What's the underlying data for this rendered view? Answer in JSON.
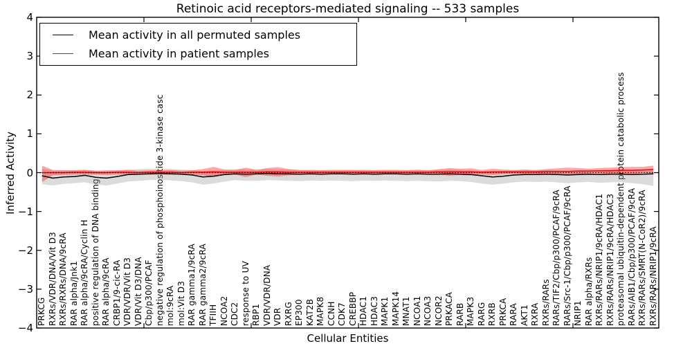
{
  "title": "Retinoic acid receptors-mediated signaling -- 533 samples",
  "chart_data": {
    "type": "line",
    "title": "Retinoic acid receptors-mediated signaling -- 533 samples",
    "xlabel": "Cellular Entities",
    "ylabel": "Inferred Activity",
    "ylim": [
      -4,
      4
    ],
    "yticks": [
      4,
      3,
      2,
      1,
      0,
      -1,
      -2,
      -3,
      -4
    ],
    "ytick_labels": [
      "4",
      "3",
      "2",
      "1",
      "0",
      "−1",
      "−2",
      "−3",
      "−4"
    ],
    "xtick_positions": [
      10,
      20,
      30,
      40,
      50
    ],
    "grid": false,
    "legend_position": "upper left",
    "zero_reference_line": {
      "value": 0,
      "style": "dotted",
      "color": "#000000"
    },
    "categories": [
      "PRKCG",
      "RXRs/VDR/DNA/Vit D3",
      "RXRs/RXRs/DNA/9cRA",
      "RAR alpha/Jnk1",
      "RAR alpha/9cRA/Cyclin H",
      "positive regulation of DNA binding",
      "RAR alpha/9cRA",
      "CRBP1/9-cic-RA",
      "VDR/VDR/Vit D3",
      "VDR/Vit D3/DNA",
      "Cbp/p300/PCAF",
      "negative regulation of phosphoinositide 3-kinase casc",
      "mol:9cRA",
      "mol:Vit D3",
      "RAR gamma1/9cRA",
      "RAR gamma2/9cRA",
      "TFIIH",
      "NCOA2",
      "CDC2",
      "response to UV",
      "RBP1",
      "VDR/VDR/DNA",
      "VDR",
      "RXRG",
      "EP300",
      "KAT2B",
      "MAPK8",
      "CCNH",
      "CDK7",
      "CREBBP",
      "HDAC1",
      "HDAC3",
      "MAPK1",
      "MAPK14",
      "MNAT1",
      "NCOA1",
      "NCOA3",
      "NCOR2",
      "PRKACA",
      "RARB",
      "MAPK3",
      "RARG",
      "RXRB",
      "PRKCA",
      "RARA",
      "AKT1",
      "RXRA",
      "RXRs/RARs",
      "RARs/TIF2/Cbp/p300/PCAF/9cRA",
      "RARs/Src-1/Cbp/p300/PCAF/9cRA",
      "NRIP1",
      "RAR alpha/RXRs",
      "RXRs/RARs/NRIP1/9cRA/HDAC1",
      "RXRs/RARs/NRIP1/9cRA/HDAC3",
      "proteasomal ubiquitin-dependent protein catabolic process",
      "RARs/AIB1/Cbp/p300/PCAF/9cRA",
      "RXRs/RARs/SMRT(N-CoR2)/9cRA",
      "RXRs/RARs/NRIP1/9cRA"
    ],
    "series": [
      {
        "id": "permuted-mean",
        "name": "Mean activity in all permuted samples",
        "color": "#000000",
        "band_color": "#999999",
        "band_opacity": 0.35,
        "values": [
          -0.08,
          -0.14,
          -0.11,
          -0.1,
          -0.07,
          -0.12,
          -0.14,
          -0.1,
          -0.05,
          -0.04,
          -0.03,
          -0.02,
          -0.03,
          -0.04,
          -0.06,
          -0.11,
          -0.09,
          -0.05,
          -0.03,
          -0.04,
          -0.03,
          -0.02,
          -0.03,
          -0.03,
          -0.04,
          -0.03,
          -0.04,
          -0.03,
          -0.03,
          -0.04,
          -0.03,
          -0.04,
          -0.03,
          -0.03,
          -0.04,
          -0.03,
          -0.04,
          -0.04,
          -0.03,
          -0.04,
          -0.05,
          -0.08,
          -0.11,
          -0.09,
          -0.06,
          -0.05,
          -0.05,
          -0.04,
          -0.05,
          -0.06,
          -0.05,
          -0.04,
          -0.05,
          -0.04,
          -0.04,
          -0.05,
          -0.04,
          -0.03
        ],
        "band_upper": [
          0.1,
          0.05,
          0.06,
          0.07,
          0.08,
          0.05,
          0.04,
          0.06,
          0.08,
          0.09,
          0.1,
          0.1,
          0.09,
          0.08,
          0.07,
          0.04,
          0.05,
          0.07,
          0.09,
          0.08,
          0.08,
          0.09,
          0.08,
          0.08,
          0.07,
          0.08,
          0.07,
          0.08,
          0.08,
          0.07,
          0.08,
          0.07,
          0.08,
          0.08,
          0.07,
          0.08,
          0.07,
          0.07,
          0.08,
          0.07,
          0.06,
          0.04,
          0.03,
          0.05,
          0.06,
          0.07,
          0.06,
          0.07,
          0.06,
          0.05,
          0.06,
          0.07,
          0.06,
          0.07,
          0.08,
          0.06,
          0.07,
          0.1
        ],
        "band_lower": [
          -0.3,
          -0.33,
          -0.29,
          -0.27,
          -0.25,
          -0.31,
          -0.33,
          -0.28,
          -0.23,
          -0.21,
          -0.19,
          -0.18,
          -0.2,
          -0.22,
          -0.25,
          -0.31,
          -0.28,
          -0.23,
          -0.19,
          -0.21,
          -0.21,
          -0.19,
          -0.2,
          -0.21,
          -0.22,
          -0.2,
          -0.21,
          -0.2,
          -0.21,
          -0.22,
          -0.2,
          -0.21,
          -0.2,
          -0.21,
          -0.22,
          -0.21,
          -0.22,
          -0.23,
          -0.21,
          -0.22,
          -0.24,
          -0.28,
          -0.31,
          -0.28,
          -0.25,
          -0.23,
          -0.24,
          -0.23,
          -0.25,
          -0.27,
          -0.25,
          -0.24,
          -0.26,
          -0.25,
          -0.24,
          -0.27,
          -0.3,
          -0.34
        ]
      },
      {
        "id": "patient-mean",
        "name": "Mean activity in patient samples",
        "color": "#ff0000",
        "band_color": "#ff0000",
        "band_opacity": 0.35,
        "values": [
          0.0,
          0.0,
          0.0,
          0.01,
          0.01,
          0.0,
          0.0,
          0.01,
          0.01,
          0.0,
          0.01,
          0.01,
          0.01,
          0.0,
          0.01,
          0.01,
          0.02,
          0.01,
          0.01,
          0.01,
          0.01,
          0.02,
          0.02,
          0.01,
          0.01,
          0.01,
          0.01,
          0.01,
          0.01,
          0.01,
          0.01,
          0.01,
          0.01,
          0.01,
          0.01,
          0.01,
          0.01,
          0.02,
          0.02,
          0.02,
          0.02,
          0.01,
          0.02,
          0.02,
          0.02,
          0.02,
          0.02,
          0.03,
          0.03,
          0.03,
          0.04,
          0.04,
          0.05,
          0.05,
          0.06,
          0.06,
          0.07,
          0.08
        ],
        "band_upper": [
          0.18,
          0.07,
          0.06,
          0.06,
          0.07,
          0.05,
          0.06,
          0.06,
          0.07,
          0.05,
          0.06,
          0.06,
          0.07,
          0.05,
          0.06,
          0.09,
          0.15,
          0.08,
          0.07,
          0.13,
          0.07,
          0.12,
          0.14,
          0.09,
          0.07,
          0.06,
          0.06,
          0.06,
          0.06,
          0.07,
          0.06,
          0.06,
          0.06,
          0.06,
          0.06,
          0.07,
          0.06,
          0.09,
          0.12,
          0.1,
          0.11,
          0.07,
          0.1,
          0.08,
          0.07,
          0.08,
          0.07,
          0.09,
          0.11,
          0.13,
          0.12,
          0.1,
          0.12,
          0.13,
          0.14,
          0.15,
          0.15,
          0.18
        ],
        "band_lower": [
          -0.24,
          -0.07,
          -0.06,
          -0.05,
          -0.05,
          -0.05,
          -0.06,
          -0.05,
          -0.05,
          -0.05,
          -0.05,
          -0.05,
          -0.05,
          -0.05,
          -0.05,
          -0.07,
          -0.11,
          -0.06,
          -0.05,
          -0.11,
          -0.05,
          -0.08,
          -0.1,
          -0.07,
          -0.05,
          -0.04,
          -0.04,
          -0.04,
          -0.04,
          -0.05,
          -0.04,
          -0.04,
          -0.04,
          -0.04,
          -0.04,
          -0.05,
          -0.04,
          -0.05,
          -0.08,
          -0.06,
          -0.07,
          -0.05,
          -0.06,
          -0.04,
          -0.03,
          -0.04,
          -0.03,
          -0.03,
          -0.05,
          -0.07,
          -0.04,
          -0.02,
          -0.02,
          -0.03,
          -0.02,
          -0.03,
          -0.01,
          -0.02
        ]
      }
    ]
  }
}
